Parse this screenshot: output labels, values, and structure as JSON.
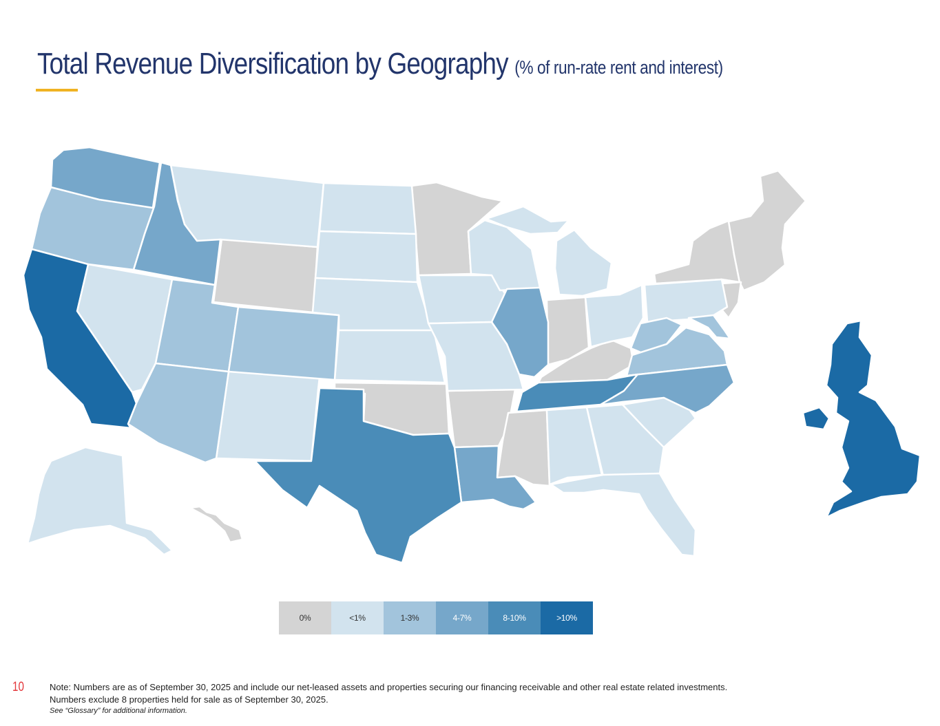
{
  "slide": {
    "title": "Total Revenue Diversification by Geography",
    "title_suffix": "(% of run-rate rent and interest)",
    "page_number": "10"
  },
  "colors": {
    "title": "#22356b",
    "accent": "#f0b323",
    "zero": "#d4d4d4",
    "lt1": "#d2e3ee",
    "r1_3": "#a2c4dc",
    "r4_7": "#76a7ca",
    "r8_10": "#4a8cb8",
    "gt10": "#1b6aa5",
    "page_number": "#e3373b"
  },
  "legend": [
    {
      "label": "0%",
      "color": "#d4d4d4",
      "text_color": "#333333"
    },
    {
      "label": "<1%",
      "color": "#d2e3ee",
      "text_color": "#333333"
    },
    {
      "label": "1-3%",
      "color": "#a2c4dc",
      "text_color": "#333333"
    },
    {
      "label": "4-7%",
      "color": "#76a7ca",
      "text_color": "#ffffff"
    },
    {
      "label": "8-10%",
      "color": "#4a8cb8",
      "text_color": "#ffffff"
    },
    {
      "label": ">10%",
      "color": "#1b6aa5",
      "text_color": "#ffffff"
    }
  ],
  "notes": {
    "line1": "Note: Numbers are as of September 30, 2025 and include our net-leased assets and properties securing our financing receivable and other real estate related investments.",
    "line2": "Numbers exclude 8 properties held for sale as of September 30, 2025.",
    "line3": "See “Glossary” for additional information."
  }
}
